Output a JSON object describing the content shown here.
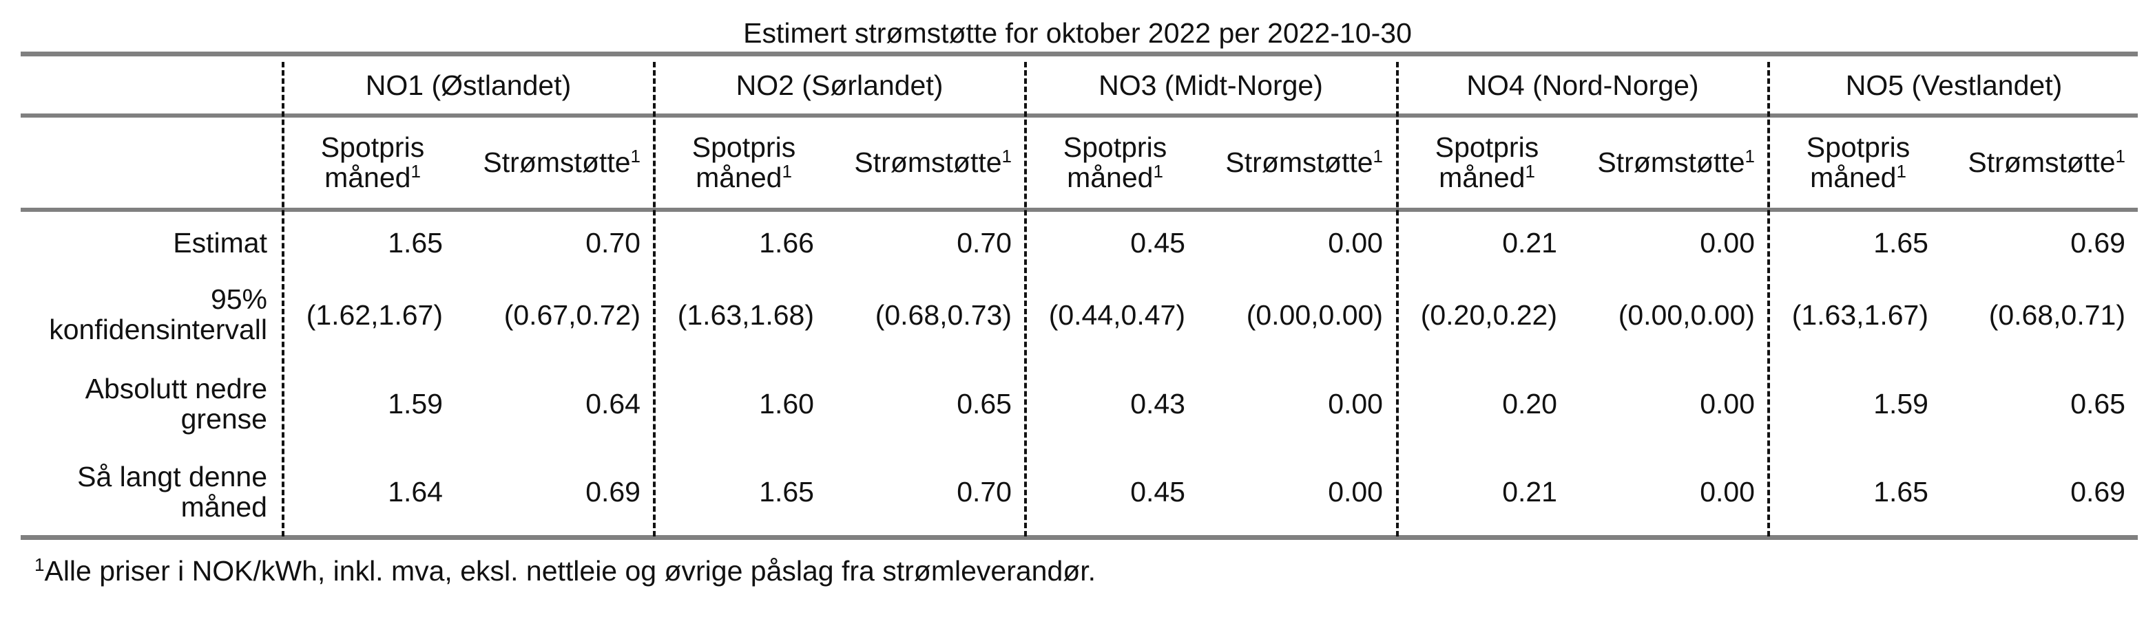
{
  "title": "Estimert strømstøtte for oktober 2022 per 2022-10-30",
  "regions": [
    "NO1 (Østlandet)",
    "NO2 (Sørlandet)",
    "NO3 (Midt-Norge)",
    "NO4 (Nord-Norge)",
    "NO5 (Vestlandet)"
  ],
  "subheaders": {
    "spot_line1": "Spotpris",
    "spot_line2": "måned",
    "support": "Strømstøtte",
    "sup_marker": "1"
  },
  "rows": [
    {
      "label_lines": [
        "Estimat"
      ],
      "values": [
        "1.65",
        "0.70",
        "1.66",
        "0.70",
        "0.45",
        "0.00",
        "0.21",
        "0.00",
        "1.65",
        "0.69"
      ]
    },
    {
      "label_lines": [
        "95%",
        "konfidensintervall"
      ],
      "values": [
        "(1.62,1.67)",
        "(0.67,0.72)",
        "(1.63,1.68)",
        "(0.68,0.73)",
        "(0.44,0.47)",
        "(0.00,0.00)",
        "(0.20,0.22)",
        "(0.00,0.00)",
        "(1.63,1.67)",
        "(0.68,0.71)"
      ]
    },
    {
      "label_lines": [
        "Absolutt nedre",
        "grense"
      ],
      "values": [
        "1.59",
        "0.64",
        "1.60",
        "0.65",
        "0.43",
        "0.00",
        "0.20",
        "0.00",
        "1.59",
        "0.65"
      ]
    },
    {
      "label_lines": [
        "Så langt denne",
        "måned"
      ],
      "values": [
        "1.64",
        "0.69",
        "1.65",
        "0.70",
        "0.45",
        "0.00",
        "0.21",
        "0.00",
        "1.65",
        "0.69"
      ]
    }
  ],
  "footnote": {
    "marker": "1",
    "text": "Alle priser i NOK/kWh, inkl. mva, eksl. nettleie og øvrige påslag fra strømleverandør."
  }
}
